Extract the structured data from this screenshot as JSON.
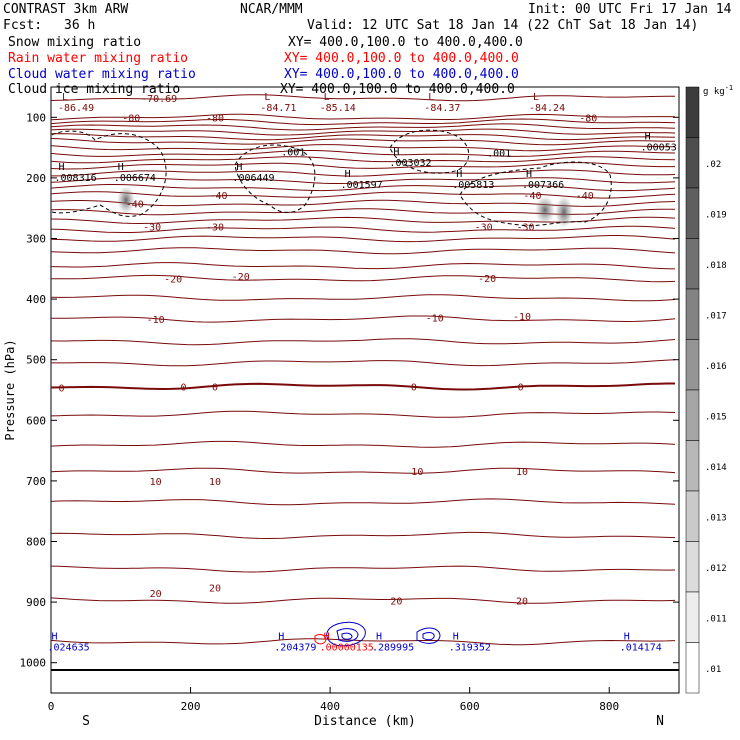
{
  "header": {
    "title": "CONTRAST  3km ARW",
    "center": "NCAR/MMM",
    "init": "Init: 00 UTC Fri 17 Jan 14",
    "fcst_label": "Fcst:",
    "fcst_value": "36 h",
    "valid": "Valid: 12 UTC Sat 18 Jan 14 (22 ChT Sat 18 Jan 14)"
  },
  "legend": [
    {
      "name": "Snow mixing ratio",
      "xy": "XY= 400.0,100.0 to 400.0,400.0",
      "color": "#000000"
    },
    {
      "name": "Rain water mixing ratio",
      "xy": "XY= 400.0,100.0 to 400.0,400.0",
      "color": "#ff0000"
    },
    {
      "name": "Cloud water mixing ratio",
      "xy": "XY= 400.0,100.0 to 400.0,400.0",
      "color": "#0000cc"
    },
    {
      "name": "Cloud ice mixing ratio",
      "xy": "XY= 400.0,100.0 to 400.0,400.0",
      "color": "#000000"
    }
  ],
  "colors": {
    "temperature": "#7a0a0a",
    "cloud_water": "#0000cc",
    "rain": "#ff0000",
    "ice": "#000000"
  },
  "chart_data": {
    "type": "contour",
    "xlabel": "Distance (km)",
    "ylabel": "Pressure (hPa)",
    "xlim": [
      0,
      900
    ],
    "ylim": [
      1050,
      50
    ],
    "x_ticks": [
      "0",
      "200",
      "400",
      "600",
      "800"
    ],
    "y_ticks": [
      "100",
      "200",
      "300",
      "400",
      "500",
      "600",
      "700",
      "800",
      "900",
      "1000"
    ],
    "x_end_labels": {
      "left": "S",
      "right": "N"
    },
    "colorbar": {
      "unit": "g kg",
      "unit_exp": "-1",
      "ticks": [
        "",
        ".02",
        ".019",
        ".018",
        ".017",
        ".016",
        ".015",
        ".014",
        ".013",
        ".012",
        ".011",
        ".01"
      ]
    },
    "temp_contour_labels": [
      {
        "value": "-70.69",
        "x": 155,
        "p": 68
      },
      {
        "value": "-80",
        "x": 115,
        "p": 100
      },
      {
        "value": "-80",
        "x": 235,
        "p": 100
      },
      {
        "value": "-80",
        "x": 770,
        "p": 100
      },
      {
        "value": "-40",
        "x": 240,
        "p": 228
      },
      {
        "value": "-40",
        "x": 120,
        "p": 242
      },
      {
        "value": "-40",
        "x": 690,
        "p": 228
      },
      {
        "value": "-40",
        "x": 765,
        "p": 228
      },
      {
        "value": "-30",
        "x": 145,
        "p": 280
      },
      {
        "value": "-30",
        "x": 235,
        "p": 280
      },
      {
        "value": "-30",
        "x": 620,
        "p": 280
      },
      {
        "value": "-30",
        "x": 680,
        "p": 280
      },
      {
        "value": "-20",
        "x": 175,
        "p": 366
      },
      {
        "value": "-20",
        "x": 272,
        "p": 362
      },
      {
        "value": "-20",
        "x": 625,
        "p": 365
      },
      {
        "value": "-10",
        "x": 150,
        "p": 433
      },
      {
        "value": "-10",
        "x": 550,
        "p": 430
      },
      {
        "value": "-10",
        "x": 675,
        "p": 428
      },
      {
        "value": "0",
        "x": 15,
        "p": 546
      },
      {
        "value": "0",
        "x": 190,
        "p": 544
      },
      {
        "value": "0",
        "x": 235,
        "p": 544
      },
      {
        "value": "0",
        "x": 520,
        "p": 544
      },
      {
        "value": "0",
        "x": 673,
        "p": 544
      },
      {
        "value": "10",
        "x": 150,
        "p": 700
      },
      {
        "value": "10",
        "x": 235,
        "p": 700
      },
      {
        "value": "10",
        "x": 525,
        "p": 684
      },
      {
        "value": "10",
        "x": 675,
        "p": 684
      },
      {
        "value": "20",
        "x": 150,
        "p": 885
      },
      {
        "value": "20",
        "x": 235,
        "p": 876
      },
      {
        "value": "20",
        "x": 495,
        "p": 897
      },
      {
        "value": "20",
        "x": 675,
        "p": 897
      }
    ],
    "high_labels": [
      {
        "mark": "L",
        "value": "-86.49",
        "x": 10,
        "p": 85,
        "color": "#7a0a0a"
      },
      {
        "mark": "L",
        "value": "-84.71",
        "x": 300,
        "p": 85,
        "color": "#7a0a0a"
      },
      {
        "mark": "L",
        "value": "-85.14",
        "x": 385,
        "p": 85,
        "color": "#7a0a0a"
      },
      {
        "mark": "L",
        "value": "-84.37",
        "x": 535,
        "p": 85,
        "color": "#7a0a0a"
      },
      {
        "mark": "L",
        "value": "-84.24",
        "x": 685,
        "p": 85,
        "color": "#7a0a0a"
      },
      {
        "mark": "",
        "value": ".001",
        "x": 330,
        "p": 158,
        "color": "#000000"
      },
      {
        "mark": "",
        "value": ".001",
        "x": 625,
        "p": 160,
        "color": "#000000"
      },
      {
        "mark": "H",
        "value": ".00053",
        "x": 845,
        "p": 150,
        "color": "#000000"
      },
      {
        "mark": "H",
        "value": ".003032",
        "x": 485,
        "p": 175,
        "color": "#000000"
      },
      {
        "mark": "H",
        "value": ".008316",
        "x": 5,
        "p": 200,
        "color": "#000000"
      },
      {
        "mark": "H",
        "value": ".006674",
        "x": 90,
        "p": 200,
        "color": "#000000"
      },
      {
        "mark": "H",
        "value": ".006449",
        "x": 260,
        "p": 200,
        "color": "#000000"
      },
      {
        "mark": "H",
        "value": ".001597",
        "x": 415,
        "p": 212,
        "color": "#000000"
      },
      {
        "mark": "H",
        "value": ".005813",
        "x": 575,
        "p": 212,
        "color": "#000000"
      },
      {
        "mark": "H",
        "value": ".007366",
        "x": 675,
        "p": 212,
        "color": "#000000"
      },
      {
        "mark": "H",
        "value": ".024635",
        "x": -5,
        "p": 975,
        "color": "#0000cc"
      },
      {
        "mark": "H",
        "value": ".204379",
        "x": 320,
        "p": 975,
        "color": "#0000cc"
      },
      {
        "mark": "H",
        "value": ".00000135",
        "x": 385,
        "p": 975,
        "color": "#ff0000"
      },
      {
        "mark": "H",
        "value": ".289995",
        "x": 460,
        "p": 975,
        "color": "#0000cc"
      },
      {
        "mark": "H",
        "value": ".319352",
        "x": 570,
        "p": 975,
        "color": "#0000cc"
      },
      {
        "mark": "H",
        "value": ".014174",
        "x": 815,
        "p": 975,
        "color": "#0000cc"
      }
    ]
  }
}
